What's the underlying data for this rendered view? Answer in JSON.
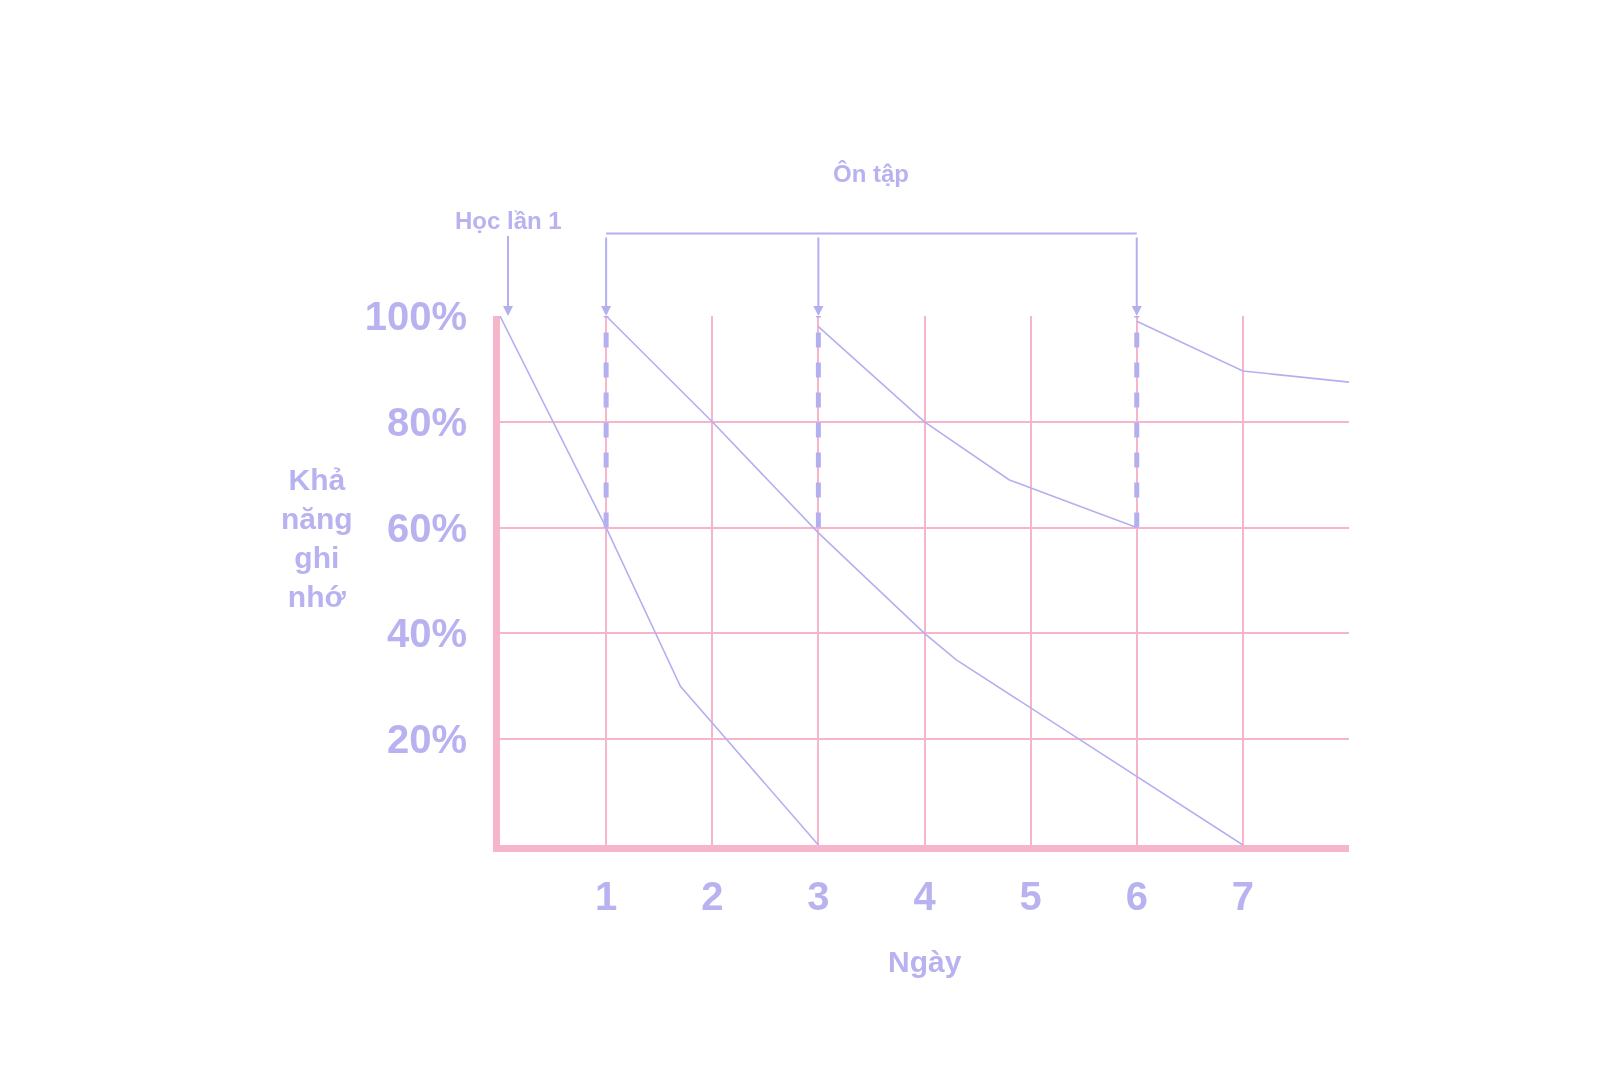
{
  "chart_data": {
    "type": "line",
    "xlabel": "Ngày",
    "ylabel": "Khả năng ghi nhớ",
    "annotations": [
      {
        "text": "Học lần 1",
        "x": 0,
        "y": 100
      },
      "Ôn tập"
    ],
    "series": [
      {
        "color": "#b4b0f0",
        "x": [
          0,
          1,
          1.7,
          3
        ],
        "values": [
          100,
          60,
          30,
          0
        ]
      },
      {
        "color": "#b4b0f0",
        "x": [
          1,
          2,
          3,
          4,
          4.3,
          7
        ],
        "values": [
          100,
          80,
          59,
          40,
          35,
          0
        ]
      },
      {
        "color": "#b4b0f0",
        "x": [
          3,
          4,
          4.8,
          6
        ],
        "values": [
          98,
          80,
          69,
          60
        ]
      },
      {
        "color": "#b4b0f0",
        "x": [
          6,
          7,
          8
        ],
        "values": [
          99,
          89.6,
          87.5
        ]
      },
      {
        "color": "#b4b0f0",
        "line_style": "dashed",
        "x": [
          1,
          1
        ],
        "values": [
          60,
          100
        ]
      },
      {
        "color": "#b4b0f0",
        "line_style": "dashed",
        "x": [
          3,
          3
        ],
        "values": [
          60,
          100
        ]
      },
      {
        "color": "#b4b0f0",
        "line_style": "dashed",
        "x": [
          6,
          6
        ],
        "values": [
          60,
          100
        ]
      }
    ],
    "xlim": [
      0,
      8
    ],
    "xticks": [
      1,
      2,
      3,
      4,
      5,
      6,
      7
    ],
    "ylim": [
      0,
      100
    ],
    "yticks": [
      {
        "value": 20,
        "label": "20%"
      },
      {
        "value": 40,
        "label": "40%"
      },
      {
        "value": 60,
        "label": "60%"
      },
      {
        "value": 80,
        "label": "80%"
      },
      {
        "value": 100,
        "label": "100%"
      }
    ],
    "grid": true
  }
}
